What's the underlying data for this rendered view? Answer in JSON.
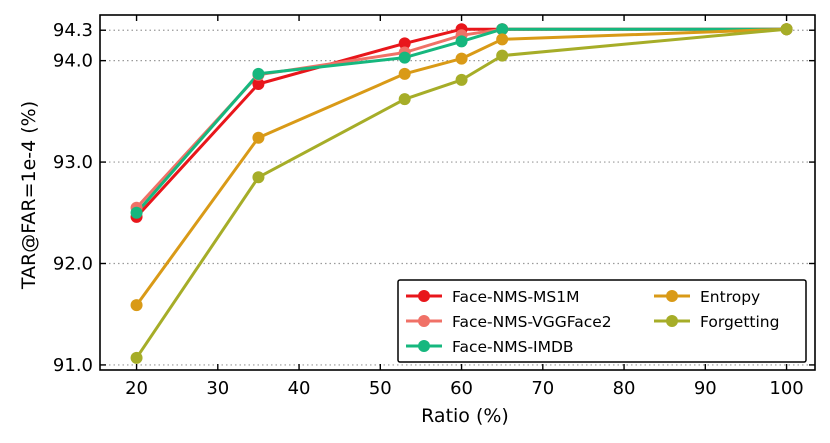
{
  "chart_data": {
    "type": "line",
    "title": "",
    "xlabel": "Ratio (%)",
    "ylabel": "TAR@FAR=1e-4 (%)",
    "xlim": [
      15.5,
      103.5
    ],
    "ylim": [
      90.95,
      94.45
    ],
    "xticks": [
      20,
      30,
      40,
      50,
      60,
      70,
      80,
      90,
      100
    ],
    "yticks": [
      91.0,
      92.0,
      93.0,
      94.0,
      94.3
    ],
    "ytick_labels": [
      "91.0",
      "92.0",
      "93.0",
      "94.0",
      "94.3"
    ],
    "grid": "horizontal dotted at y ticks",
    "legend_position": "bottom-right",
    "x": [
      20,
      35,
      53,
      60,
      65,
      100
    ],
    "series": [
      {
        "name": "Face-NMS-MS1M",
        "color": "#e8161b",
        "values": [
          92.46,
          93.77,
          94.17,
          94.31,
          94.31,
          94.31
        ]
      },
      {
        "name": "Face-NMS-VGGFace2",
        "color": "#f07167",
        "values": [
          92.55,
          93.86,
          94.08,
          94.25,
          94.31,
          94.31
        ]
      },
      {
        "name": "Face-NMS-IMDB",
        "color": "#16b77e",
        "values": [
          92.5,
          93.87,
          94.03,
          94.19,
          94.31,
          94.31
        ]
      },
      {
        "name": "Entropy",
        "color": "#d99a17",
        "values": [
          91.59,
          93.24,
          93.87,
          94.02,
          94.21,
          94.31
        ]
      },
      {
        "name": "Forgetting",
        "color": "#a6ad28",
        "values": [
          91.07,
          92.85,
          93.62,
          93.81,
          94.05,
          94.31
        ]
      }
    ],
    "legend_columns": [
      [
        "Face-NMS-MS1M",
        "Face-NMS-VGGFace2",
        "Face-NMS-IMDB"
      ],
      [
        "Entropy",
        "Forgetting"
      ]
    ]
  }
}
